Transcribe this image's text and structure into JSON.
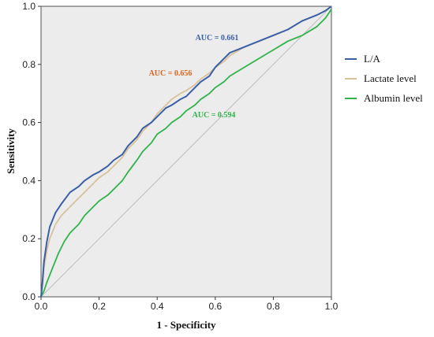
{
  "chart_data": {
    "type": "line",
    "title": "",
    "xlabel": "1 - Specificity",
    "ylabel": "Sensitivity",
    "xlim": [
      0,
      1
    ],
    "ylim": [
      0,
      1
    ],
    "xticks": [
      "0.0",
      "0.2",
      "0.4",
      "0.6",
      "0.8",
      "1.0"
    ],
    "yticks": [
      "0.0",
      "0.2",
      "0.4",
      "0.6",
      "0.8",
      "1.0"
    ],
    "grid": false,
    "background": "#ececec",
    "legend_position": "right",
    "series": [
      {
        "name": "L/A",
        "color": "#3a5fa6",
        "auc_label": "AUC = 0.661",
        "auc_color": "#3a5fa6",
        "x": [
          0,
          0.005,
          0.01,
          0.02,
          0.03,
          0.05,
          0.07,
          0.1,
          0.13,
          0.15,
          0.18,
          0.2,
          0.23,
          0.25,
          0.28,
          0.3,
          0.33,
          0.35,
          0.38,
          0.4,
          0.43,
          0.45,
          0.48,
          0.5,
          0.53,
          0.55,
          0.58,
          0.6,
          0.63,
          0.65,
          0.7,
          0.75,
          0.8,
          0.85,
          0.9,
          0.95,
          0.98,
          1.0
        ],
        "y": [
          0,
          0.05,
          0.12,
          0.19,
          0.24,
          0.29,
          0.32,
          0.36,
          0.38,
          0.4,
          0.42,
          0.43,
          0.45,
          0.47,
          0.49,
          0.52,
          0.55,
          0.58,
          0.6,
          0.62,
          0.65,
          0.66,
          0.68,
          0.69,
          0.72,
          0.74,
          0.76,
          0.79,
          0.82,
          0.84,
          0.86,
          0.88,
          0.9,
          0.92,
          0.95,
          0.97,
          0.985,
          1.0
        ]
      },
      {
        "name": "Lactate level",
        "color": "#d9c29a",
        "auc_label": "AUC = 0.656",
        "auc_color": "#d9631c",
        "x": [
          0,
          0.005,
          0.01,
          0.02,
          0.03,
          0.05,
          0.07,
          0.1,
          0.13,
          0.15,
          0.18,
          0.2,
          0.23,
          0.25,
          0.28,
          0.3,
          0.33,
          0.35,
          0.38,
          0.4,
          0.43,
          0.45,
          0.48,
          0.5,
          0.53,
          0.55,
          0.58,
          0.6,
          0.63,
          0.65,
          0.7,
          0.75,
          0.8,
          0.85,
          0.9,
          0.95,
          0.98,
          1.0
        ],
        "y": [
          0,
          0.04,
          0.1,
          0.16,
          0.2,
          0.25,
          0.28,
          0.31,
          0.34,
          0.36,
          0.39,
          0.41,
          0.43,
          0.45,
          0.48,
          0.51,
          0.54,
          0.57,
          0.6,
          0.63,
          0.66,
          0.68,
          0.7,
          0.71,
          0.73,
          0.75,
          0.77,
          0.79,
          0.81,
          0.83,
          0.86,
          0.88,
          0.9,
          0.92,
          0.95,
          0.97,
          0.985,
          1.0
        ]
      },
      {
        "name": "Albumin level",
        "color": "#2fb34a",
        "auc_label": "AUC = 0.594",
        "auc_color": "#2fb34a",
        "x": [
          0,
          0.01,
          0.02,
          0.04,
          0.06,
          0.08,
          0.1,
          0.13,
          0.15,
          0.18,
          0.2,
          0.23,
          0.25,
          0.28,
          0.3,
          0.33,
          0.35,
          0.38,
          0.4,
          0.43,
          0.45,
          0.48,
          0.5,
          0.53,
          0.55,
          0.58,
          0.6,
          0.63,
          0.65,
          0.7,
          0.75,
          0.8,
          0.85,
          0.9,
          0.95,
          0.98,
          1.0
        ],
        "y": [
          0,
          0.02,
          0.05,
          0.1,
          0.15,
          0.19,
          0.22,
          0.25,
          0.28,
          0.31,
          0.33,
          0.35,
          0.37,
          0.4,
          0.43,
          0.47,
          0.5,
          0.53,
          0.56,
          0.58,
          0.6,
          0.62,
          0.64,
          0.66,
          0.68,
          0.7,
          0.72,
          0.74,
          0.76,
          0.79,
          0.82,
          0.85,
          0.88,
          0.9,
          0.93,
          0.96,
          0.99
        ]
      }
    ]
  }
}
